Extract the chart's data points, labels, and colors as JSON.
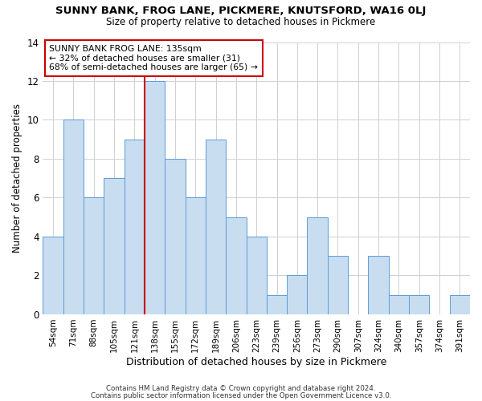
{
  "title": "SUNNY BANK, FROG LANE, PICKMERE, KNUTSFORD, WA16 0LJ",
  "subtitle": "Size of property relative to detached houses in Pickmere",
  "xlabel": "Distribution of detached houses by size in Pickmere",
  "ylabel": "Number of detached properties",
  "bar_labels": [
    "54sqm",
    "71sqm",
    "88sqm",
    "105sqm",
    "121sqm",
    "138sqm",
    "155sqm",
    "172sqm",
    "189sqm",
    "206sqm",
    "223sqm",
    "239sqm",
    "256sqm",
    "273sqm",
    "290sqm",
    "307sqm",
    "324sqm",
    "340sqm",
    "357sqm",
    "374sqm",
    "391sqm"
  ],
  "bar_values": [
    4,
    10,
    6,
    7,
    9,
    12,
    8,
    6,
    9,
    5,
    4,
    1,
    2,
    5,
    3,
    0,
    3,
    1,
    1,
    0,
    1
  ],
  "bar_color": "#c9ddf0",
  "bar_edge_color": "#5b9bd5",
  "vline_x_index": 5,
  "vline_color": "#cc0000",
  "annotation_title": "SUNNY BANK FROG LANE: 135sqm",
  "annotation_line1": "← 32% of detached houses are smaller (31)",
  "annotation_line2": "68% of semi-detached houses are larger (65) →",
  "annotation_box_edge": "#cc0000",
  "ylim": [
    0,
    14
  ],
  "yticks": [
    0,
    2,
    4,
    6,
    8,
    10,
    12,
    14
  ],
  "footer1": "Contains HM Land Registry data © Crown copyright and database right 2024.",
  "footer2": "Contains public sector information licensed under the Open Government Licence v3.0.",
  "background_color": "#ffffff",
  "grid_color": "#d0d0d0"
}
